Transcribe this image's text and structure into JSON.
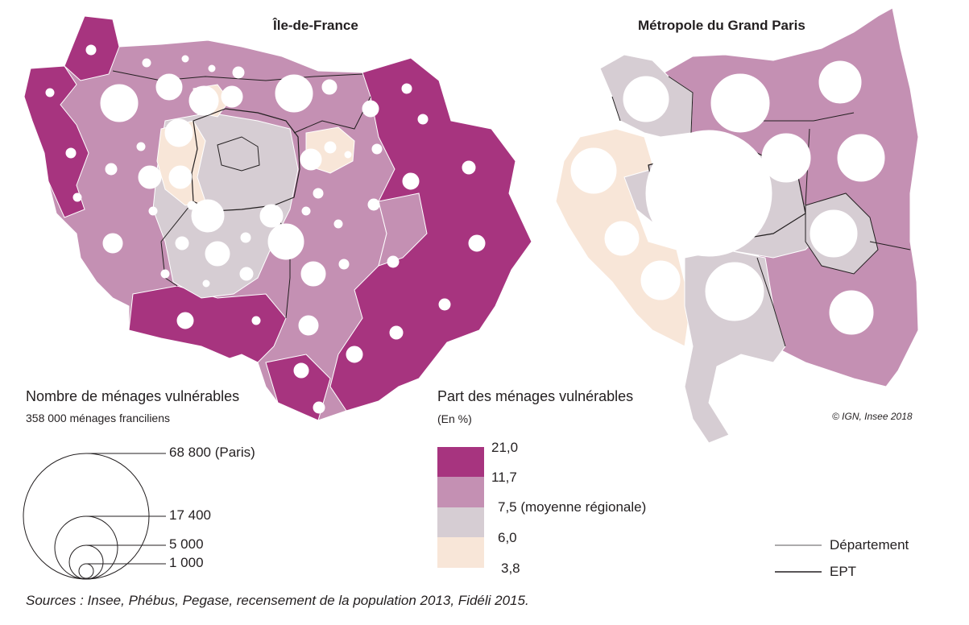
{
  "titles": {
    "left": "Île-de-France",
    "right": "Métropole du Grand Paris"
  },
  "size_legend": {
    "title": "Nombre de ménages vulnérables",
    "subtitle": "358 000 ménages franciliens",
    "entries": [
      {
        "label": "68 800 (Paris)",
        "value": 68800
      },
      {
        "label": "17 400",
        "value": 17400
      },
      {
        "label": "5 000",
        "value": 5000
      },
      {
        "label": "1 000",
        "value": 1000
      }
    ]
  },
  "color_legend": {
    "title": "Part des ménages vulnérables",
    "unit": "(En %)",
    "breaks": [
      "21,0",
      "11,7",
      "7,5 (moyenne régionale)",
      "6,0",
      "3,8"
    ],
    "classes": [
      {
        "color": "#a7347f"
      },
      {
        "color": "#c490b3"
      },
      {
        "color": "#d6cdd3"
      },
      {
        "color": "#f8e6d8"
      }
    ]
  },
  "line_legend": {
    "departement": "Département",
    "ept": "EPT"
  },
  "colors": {
    "dark": "#a7347f",
    "medium": "#c490b3",
    "light": "#d6cdd3",
    "pale": "#f8e6d8"
  },
  "copyright": "© IGN, Insee 2018",
  "sources": "Sources : Insee, Phébus, Pegase, recensement de la population 2013, Fidéli 2015."
}
